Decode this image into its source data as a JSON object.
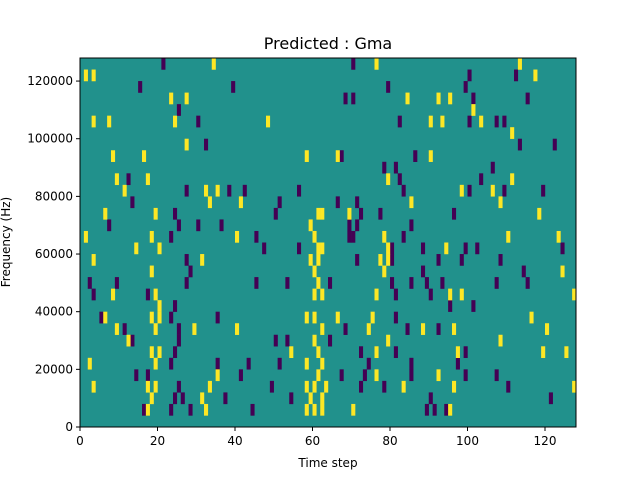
{
  "chart_data": {
    "type": "heatmap",
    "title": "Predicted : Gma",
    "xlabel": "Time step",
    "ylabel": "Frequency (Hz)",
    "xlim": [
      0,
      128
    ],
    "ylim": [
      0,
      128000
    ],
    "x_ticks": [
      0,
      20,
      40,
      60,
      80,
      100,
      120
    ],
    "x_tick_labels": [
      "0",
      "20",
      "40",
      "60",
      "80",
      "100",
      "120"
    ],
    "y_ticks": [
      0,
      20000,
      40000,
      60000,
      80000,
      100000,
      120000
    ],
    "y_tick_labels": [
      "0",
      "20000",
      "40000",
      "60000",
      "80000",
      "100000",
      "120000"
    ],
    "grid": false,
    "colors": {
      "background": "#21918c",
      "low": "#440154",
      "high": "#fde725"
    },
    "high_cells": [
      [
        1,
        120000
      ],
      [
        3,
        120000
      ],
      [
        34,
        124000
      ],
      [
        76,
        124000
      ],
      [
        113,
        124000
      ],
      [
        117,
        120000
      ],
      [
        23,
        112000
      ],
      [
        27,
        112000
      ],
      [
        84,
        112000
      ],
      [
        92,
        112000
      ],
      [
        95,
        112000
      ],
      [
        101,
        108000
      ],
      [
        7,
        104000
      ],
      [
        3,
        104000
      ],
      [
        24,
        104000
      ],
      [
        48,
        104000
      ],
      [
        90,
        104000
      ],
      [
        93,
        104000
      ],
      [
        103,
        104000
      ],
      [
        111,
        100000
      ],
      [
        8,
        92000
      ],
      [
        16,
        92000
      ],
      [
        27,
        96000
      ],
      [
        58,
        92000
      ],
      [
        66,
        92000
      ],
      [
        90,
        92000
      ],
      [
        9,
        84000
      ],
      [
        11,
        80000
      ],
      [
        17,
        84000
      ],
      [
        32,
        80000
      ],
      [
        35,
        80000
      ],
      [
        79,
        84000
      ],
      [
        98,
        80000
      ],
      [
        106,
        80000
      ],
      [
        111,
        84000
      ],
      [
        6,
        72000
      ],
      [
        19,
        72000
      ],
      [
        33,
        76000
      ],
      [
        41,
        76000
      ],
      [
        61,
        72000
      ],
      [
        62,
        72000
      ],
      [
        69,
        72000
      ],
      [
        85,
        76000
      ],
      [
        108,
        76000
      ],
      [
        118,
        72000
      ],
      [
        1,
        64000
      ],
      [
        18,
        64000
      ],
      [
        20,
        60000
      ],
      [
        40,
        64000
      ],
      [
        59,
        68000
      ],
      [
        60,
        64000
      ],
      [
        61,
        60000
      ],
      [
        62,
        60000
      ],
      [
        78,
        64000
      ],
      [
        79,
        60000
      ],
      [
        94,
        60000
      ],
      [
        110,
        64000
      ],
      [
        123,
        64000
      ],
      [
        3,
        56000
      ],
      [
        14,
        60000
      ],
      [
        18,
        52000
      ],
      [
        31,
        56000
      ],
      [
        59,
        56000
      ],
      [
        60,
        52000
      ],
      [
        61,
        56000
      ],
      [
        77,
        56000
      ],
      [
        78,
        52000
      ],
      [
        79,
        56000
      ],
      [
        124,
        52000
      ],
      [
        8,
        44000
      ],
      [
        19,
        44000
      ],
      [
        20,
        40000
      ],
      [
        60,
        44000
      ],
      [
        61,
        48000
      ],
      [
        62,
        44000
      ],
      [
        76,
        44000
      ],
      [
        95,
        44000
      ],
      [
        98,
        44000
      ],
      [
        127,
        44000
      ],
      [
        6,
        36000
      ],
      [
        9,
        32000
      ],
      [
        18,
        36000
      ],
      [
        19,
        32000
      ],
      [
        20,
        36000
      ],
      [
        29,
        32000
      ],
      [
        40,
        32000
      ],
      [
        58,
        36000
      ],
      [
        60,
        36000
      ],
      [
        62,
        32000
      ],
      [
        66,
        36000
      ],
      [
        74,
        32000
      ],
      [
        75,
        36000
      ],
      [
        88,
        32000
      ],
      [
        96,
        32000
      ],
      [
        116,
        36000
      ],
      [
        120,
        32000
      ],
      [
        2,
        20000
      ],
      [
        12,
        28000
      ],
      [
        18,
        24000
      ],
      [
        19,
        20000
      ],
      [
        20,
        24000
      ],
      [
        54,
        24000
      ],
      [
        58,
        20000
      ],
      [
        60,
        28000
      ],
      [
        61,
        24000
      ],
      [
        62,
        20000
      ],
      [
        76,
        24000
      ],
      [
        79,
        28000
      ],
      [
        97,
        24000
      ],
      [
        108,
        28000
      ],
      [
        119,
        24000
      ],
      [
        125,
        24000
      ],
      [
        3,
        12000
      ],
      [
        17,
        12000
      ],
      [
        18,
        8000
      ],
      [
        19,
        12000
      ],
      [
        33,
        12000
      ],
      [
        35,
        16000
      ],
      [
        58,
        12000
      ],
      [
        59,
        8000
      ],
      [
        60,
        12000
      ],
      [
        61,
        16000
      ],
      [
        62,
        8000
      ],
      [
        63,
        12000
      ],
      [
        76,
        16000
      ],
      [
        83,
        12000
      ],
      [
        92,
        16000
      ],
      [
        96,
        12000
      ],
      [
        127,
        12000
      ],
      [
        17,
        4000
      ],
      [
        31,
        8000
      ],
      [
        32,
        4000
      ],
      [
        58,
        4000
      ],
      [
        60,
        4000
      ],
      [
        62,
        4000
      ],
      [
        70,
        4000
      ],
      [
        95,
        4000
      ]
    ],
    "low_cells": [
      [
        21,
        124000
      ],
      [
        70,
        124000
      ],
      [
        112,
        120000
      ],
      [
        100,
        120000
      ],
      [
        15,
        116000
      ],
      [
        39,
        116000
      ],
      [
        79,
        116000
      ],
      [
        99,
        116000
      ],
      [
        68,
        112000
      ],
      [
        70,
        112000
      ],
      [
        101,
        112000
      ],
      [
        115,
        112000
      ],
      [
        25,
        108000
      ],
      [
        100,
        104000
      ],
      [
        109,
        104000
      ],
      [
        107,
        104000
      ],
      [
        30,
        104000
      ],
      [
        82,
        104000
      ],
      [
        32,
        96000
      ],
      [
        67,
        92000
      ],
      [
        86,
        92000
      ],
      [
        113,
        96000
      ],
      [
        122,
        96000
      ],
      [
        78,
        88000
      ],
      [
        81,
        88000
      ],
      [
        82,
        84000
      ],
      [
        106,
        88000
      ],
      [
        12,
        84000
      ],
      [
        27,
        80000
      ],
      [
        38,
        80000
      ],
      [
        42,
        80000
      ],
      [
        56,
        80000
      ],
      [
        66,
        76000
      ],
      [
        71,
        76000
      ],
      [
        72,
        72000
      ],
      [
        83,
        80000
      ],
      [
        100,
        80000
      ],
      [
        103,
        84000
      ],
      [
        109,
        80000
      ],
      [
        119,
        80000
      ],
      [
        7,
        68000
      ],
      [
        13,
        76000
      ],
      [
        24,
        72000
      ],
      [
        25,
        68000
      ],
      [
        30,
        68000
      ],
      [
        36,
        68000
      ],
      [
        50,
        72000
      ],
      [
        51,
        76000
      ],
      [
        69,
        68000
      ],
      [
        70,
        64000
      ],
      [
        71,
        68000
      ],
      [
        77,
        72000
      ],
      [
        85,
        68000
      ],
      [
        96,
        72000
      ],
      [
        23,
        64000
      ],
      [
        45,
        64000
      ],
      [
        47,
        60000
      ],
      [
        56,
        60000
      ],
      [
        69,
        64000
      ],
      [
        80,
        60000
      ],
      [
        83,
        64000
      ],
      [
        88,
        60000
      ],
      [
        99,
        60000
      ],
      [
        102,
        60000
      ],
      [
        124,
        60000
      ],
      [
        27,
        56000
      ],
      [
        28,
        52000
      ],
      [
        71,
        56000
      ],
      [
        80,
        56000
      ],
      [
        88,
        52000
      ],
      [
        92,
        56000
      ],
      [
        98,
        56000
      ],
      [
        108,
        56000
      ],
      [
        114,
        52000
      ],
      [
        2,
        48000
      ],
      [
        3,
        44000
      ],
      [
        9,
        48000
      ],
      [
        17,
        44000
      ],
      [
        27,
        48000
      ],
      [
        45,
        48000
      ],
      [
        53,
        48000
      ],
      [
        64,
        48000
      ],
      [
        80,
        48000
      ],
      [
        81,
        44000
      ],
      [
        85,
        48000
      ],
      [
        89,
        48000
      ],
      [
        90,
        44000
      ],
      [
        93,
        48000
      ],
      [
        107,
        48000
      ],
      [
        115,
        48000
      ],
      [
        5,
        36000
      ],
      [
        11,
        32000
      ],
      [
        23,
        36000
      ],
      [
        24,
        40000
      ],
      [
        25,
        32000
      ],
      [
        35,
        36000
      ],
      [
        50,
        28000
      ],
      [
        53,
        28000
      ],
      [
        68,
        32000
      ],
      [
        81,
        36000
      ],
      [
        84,
        32000
      ],
      [
        92,
        32000
      ],
      [
        95,
        40000
      ],
      [
        101,
        40000
      ],
      [
        13,
        28000
      ],
      [
        23,
        20000
      ],
      [
        24,
        24000
      ],
      [
        25,
        28000
      ],
      [
        35,
        20000
      ],
      [
        43,
        20000
      ],
      [
        51,
        20000
      ],
      [
        64,
        28000
      ],
      [
        72,
        24000
      ],
      [
        74,
        20000
      ],
      [
        81,
        24000
      ],
      [
        85,
        20000
      ],
      [
        97,
        20000
      ],
      [
        99,
        24000
      ],
      [
        14,
        16000
      ],
      [
        17,
        16000
      ],
      [
        24,
        8000
      ],
      [
        25,
        12000
      ],
      [
        26,
        8000
      ],
      [
        37,
        8000
      ],
      [
        41,
        16000
      ],
      [
        49,
        12000
      ],
      [
        54,
        8000
      ],
      [
        67,
        16000
      ],
      [
        72,
        12000
      ],
      [
        73,
        16000
      ],
      [
        78,
        12000
      ],
      [
        85,
        16000
      ],
      [
        90,
        8000
      ],
      [
        99,
        16000
      ],
      [
        107,
        16000
      ],
      [
        110,
        12000
      ],
      [
        121,
        8000
      ],
      [
        16,
        4000
      ],
      [
        23,
        4000
      ],
      [
        28,
        4000
      ],
      [
        44,
        4000
      ],
      [
        89,
        4000
      ],
      [
        91,
        4000
      ],
      [
        94,
        4000
      ]
    ]
  }
}
